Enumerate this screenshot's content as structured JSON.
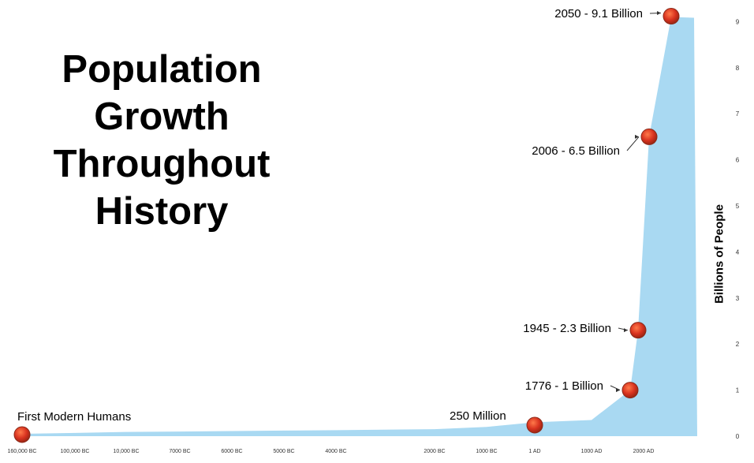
{
  "chart_data": {
    "type": "area",
    "title_lines": [
      "Population",
      "Growth",
      "Throughout",
      "History"
    ],
    "xlabel": "",
    "ylabel": "Billions of People",
    "ylim": [
      0,
      9
    ],
    "grid": true,
    "y_ticks": [
      0,
      1,
      2,
      3,
      4,
      5,
      6,
      7,
      8,
      9
    ],
    "x_ticks": [
      "160,000 BC",
      "100,000 BC",
      "10,000 BC",
      "7000 BC",
      "6000 BC",
      "5000 BC",
      "4000 BC",
      "2000 BC",
      "1000 BC",
      "1 AD",
      "1000 AD",
      "2000 AD"
    ],
    "x": [
      "160,000 BC",
      "100,000 BC",
      "10,000 BC",
      "7000 BC",
      "6000 BC",
      "5000 BC",
      "4000 BC",
      "2000 BC",
      "1000 BC",
      "1 AD",
      "1000 AD",
      "1776",
      "1945",
      "2006",
      "2050"
    ],
    "values": [
      0.0,
      0.02,
      0.04,
      0.05,
      0.06,
      0.07,
      0.08,
      0.1,
      0.15,
      0.25,
      0.3,
      1.0,
      2.3,
      6.5,
      9.1
    ],
    "annotations": [
      {
        "label": "First Modern Humans",
        "x": "160,000 BC",
        "value": 0.0
      },
      {
        "label": "250 Million",
        "x": "1 AD",
        "value": 0.25
      },
      {
        "label": "1776 - 1 Billion",
        "x": "1776",
        "value": 1.0
      },
      {
        "label": "1945 - 2.3 Billion",
        "x": "1945",
        "value": 2.3
      },
      {
        "label": "2006 - 6.5 Billion",
        "x": "2006",
        "value": 6.5
      },
      {
        "label": "2050 - 9.1 Billion",
        "x": "2050",
        "value": 9.1
      }
    ],
    "colors": {
      "area": "#a9d9f2",
      "marker": "#d23a2a",
      "marker_edge": "#8a2a1a"
    }
  }
}
